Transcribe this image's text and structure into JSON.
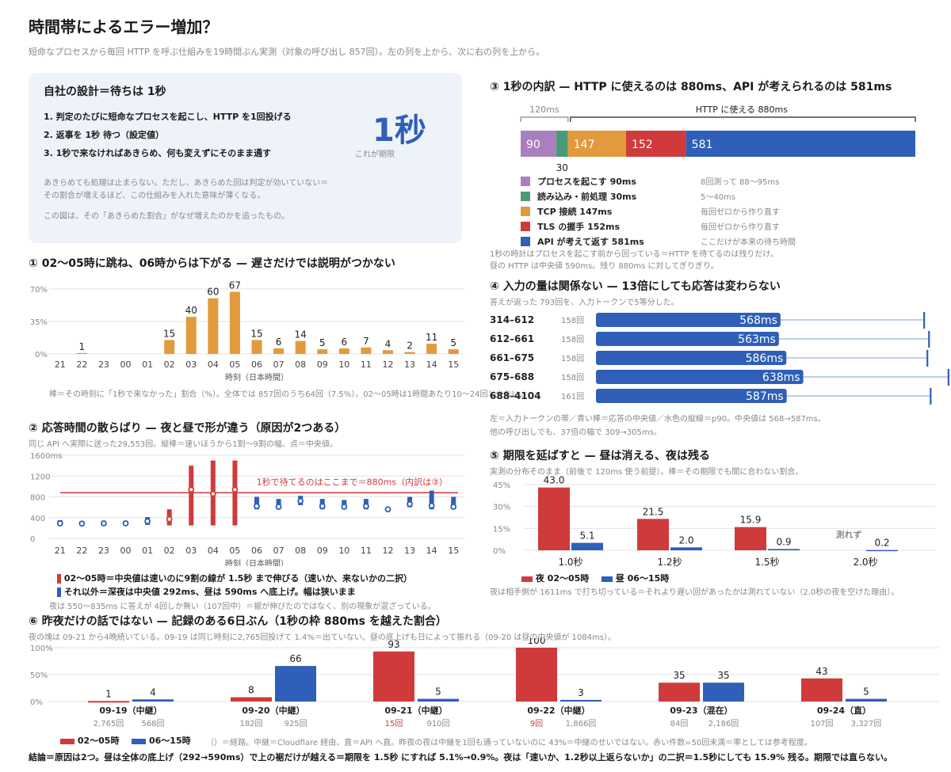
{
  "title": "時間帯によるエラー増加？",
  "subtitle": "短命なプロセスから毎回 HTTP を呼ぶ仕組みを19時間ぶん実測（対象の呼び出し 857回）。左の列を上から、次に右の列を上から。",
  "design": {
    "title": "自社の設計＝待ちは 1秒",
    "steps": [
      "1.  判定のたびに短命なプロセスを起こし、HTTP を1回投げる",
      "2.  返事を 1秒 待つ（設定値）",
      "3.  1秒で来なければあきらめ、何も変えずにそのまま通す"
    ],
    "big": "1秒",
    "big_caption": "これが期限",
    "note1": "あきらめても処理は止まらない。ただし、あきらめた回は判定が効いていない＝",
    "note2": "その割合が増えるほど、この仕組みを入れた意味が薄くなる。",
    "note3": "この図は、その「あきらめた割合」がなぜ増えたのかを追ったもの。"
  },
  "colors": {
    "orange": "#e39a3c",
    "red": "#cf3b3b",
    "blue": "#2f5fb8",
    "purple": "#a97fbf",
    "green": "#4a9a7a",
    "grid": "#e3e3e3",
    "gray": "#888888",
    "lightblue": "#a9c0e3"
  },
  "section1": {
    "title": "① 02〜05時に跳ね、06時からは下がる — 遅さだけでは説明がつかない",
    "caption": "棒＝その時刻に「1秒で来なかった」割合（%）。全体では 857回のうち64回（7.5%）。02〜05時は1時間あたり10〜24回と少ない。"
  },
  "section2": {
    "title": "② 応答時間の散らばり — 夜と昼で形が違う（原因が2つある）",
    "caption": "同じ API へ実際に送った29,553回。縦棒＝速いほうから1割〜9割の幅、点＝中央値。",
    "threshold_label": "1秒で待てるのはここまで＝880ms（内訳は③）",
    "legend1": "02〜05時＝中央値は速いのに9割の線が 1.5秒 まで伸びる（速いか、来ないかの二択）",
    "legend2": "それ以外＝深夜は中央値 292ms、昼は 590ms へ底上げ。幅は狭いまま",
    "note": "夜は 550〜835ms に答えが 4回しか無い（107回中）＝裾が伸びたのではなく、別の現象が混ざっている。"
  },
  "section3": {
    "title": "③ 1秒の内訳 — HTTP に使えるのは 880ms、API が考えられるのは 581ms",
    "bracket_left": "120ms",
    "bracket_right": "HTTP に使える 880ms",
    "segments": [
      {
        "label": "90",
        "value": 90,
        "color": "#a97fbf",
        "name": "プロセスを起こす  90ms",
        "desc": "8回測って 88〜95ms"
      },
      {
        "label": "30",
        "value": 30,
        "color": "#4a9a7a",
        "name": "読み込み・前処理  30ms",
        "desc": "5〜40ms"
      },
      {
        "label": "147",
        "value": 147,
        "color": "#e39a3c",
        "name": "TCP 接続  147ms",
        "desc": "毎回ゼロから作り直す"
      },
      {
        "label": "152",
        "value": 152,
        "color": "#cf3b3b",
        "name": "TLS の握手  152ms",
        "desc": "毎回ゼロから作り直す"
      },
      {
        "label": "581",
        "value": 581,
        "color": "#2f5fb8",
        "name": "API が考えて返す  581ms",
        "desc": "ここだけが本来の待ち時間"
      }
    ],
    "note1": "1秒の時計はプロセスを起こす前から回っている＝HTTP を待てるのは残りだけ。",
    "note2": "昼の HTTP は中央値 590ms。残り 880ms に対してぎりぎり。"
  },
  "section4": {
    "title": "④ 入力の量は関係ない — 13倍にしても応答は変わらない",
    "caption": "答えが返った 793回を、入力トークンで5等分した。",
    "rows": [
      {
        "band": "314–612",
        "count": "158回",
        "median": 568,
        "label": "568ms",
        "p90": 1010
      },
      {
        "band": "612–661",
        "count": "158回",
        "median": 563,
        "label": "563ms",
        "p90": 1025
      },
      {
        "band": "661–675",
        "count": "158回",
        "median": 586,
        "label": "586ms",
        "p90": 1020
      },
      {
        "band": "675–688",
        "count": "158回",
        "median": 638,
        "label": "638ms",
        "p90": 1085
      },
      {
        "band": "688–4104",
        "count": "161回",
        "median": 587,
        "label": "587ms",
        "p90": 1030
      }
    ],
    "note1": "左＝入力トークンの帯／青い棒＝応答の中央値／水色の縦線＝p90。中央値は 568→587ms。",
    "note2": "他の呼び出しでも、37倍の幅で 309→305ms。"
  },
  "section5": {
    "title": "⑤ 期限を延ばすと — 昼は消える、夜は残る",
    "caption": "実測の分布そのまま（前後で 120ms 使う前提）。棒＝その期限でも間に合わない割合。",
    "legend_night": "夜 02〜05時",
    "legend_day": "昼 06〜15時",
    "unmeasured": "測れず",
    "note": "夜は相手側が 1611ms で打ち切っている＝それより遅い回があったかは測れていない（2.0秒の夜を空けた理由）。"
  },
  "section6": {
    "title": "⑥ 昨夜だけの話ではない — 記録のある6日ぶん（1秒の枠 880ms を越えた割合）",
    "caption": "夜の塊は 09-21 から4晩続いている。09-19 は同じ時刻に2,765回投げて 1.4%＝出ていない。昼の底上げも日によって振れる（09-20 は昼の中央値が 1084ms）。",
    "legend_night": "02〜05時",
    "legend_day": "06〜15時",
    "legend_note": "（）＝経路。中継＝Cloudflare 経由、直＝API へ直。昨夜の夜は中継を1回も通っていないのに 43%＝中継のせいではない。赤い件数=50回未満＝率としては参考程度。"
  },
  "conclusion": "結論＝原因は2つ。昼は全体の底上げ（292→590ms）で上の裾だけが越える＝期限を 1.5秒 にすれば 5.1%→0.9%。夜は「速いか、1.2秒以上返らないか」の二択＝1.5秒にしても 15.9% 残る。期限では直らない。",
  "chart_data": [
    {
      "type": "bar",
      "title": "① 02〜05時に跳ね、06時からは下がる — 遅さだけでは説明がつかない",
      "categories": [
        "21",
        "22",
        "23",
        "00",
        "01",
        "02",
        "03",
        "04",
        "05",
        "06",
        "07",
        "08",
        "09",
        "10",
        "11",
        "12",
        "13",
        "14",
        "15"
      ],
      "values": [
        0,
        1,
        0,
        0,
        0,
        15,
        40,
        60,
        67,
        15,
        6,
        14,
        5,
        6,
        7,
        4,
        2,
        11,
        5
      ],
      "value_labels": [
        "",
        "1",
        "",
        "",
        "",
        "15",
        "40",
        "60",
        "67",
        "15",
        "6",
        "14",
        "5",
        "6",
        "7",
        "4",
        "2",
        "11",
        "5"
      ],
      "yticks": [
        "0%",
        "35%",
        "70%"
      ],
      "ylim": [
        0,
        70
      ],
      "xlabel": "時刻（日本時間）",
      "ylabel": ""
    },
    {
      "type": "scatter",
      "title": "② 応答時間の散らばり — 夜と昼で形が違う（原因が2つある）",
      "categories": [
        "21",
        "22",
        "23",
        "00",
        "01",
        "02",
        "03",
        "04",
        "05",
        "06",
        "07",
        "08",
        "09",
        "10",
        "11",
        "12",
        "13",
        "14",
        "15"
      ],
      "median": [
        290,
        285,
        290,
        290,
        330,
        370,
        940,
        860,
        940,
        620,
        610,
        720,
        620,
        610,
        620,
        560,
        660,
        630,
        610
      ],
      "p10": [
        250,
        250,
        250,
        250,
        260,
        250,
        250,
        250,
        250,
        560,
        560,
        640,
        560,
        560,
        560,
        540,
        600,
        560,
        560
      ],
      "p90": [
        350,
        330,
        340,
        340,
        410,
        560,
        1400,
        1500,
        1500,
        800,
        760,
        820,
        760,
        740,
        760,
        600,
        800,
        920,
        800
      ],
      "night_hours": [
        "02",
        "03",
        "04",
        "05"
      ],
      "threshold": 880,
      "yticks": [
        "0",
        "400",
        "800",
        "1200",
        "1600ms"
      ],
      "ylim": [
        0,
        1600
      ],
      "xlabel": "時刻（日本時間）"
    },
    {
      "type": "bar",
      "title": "⑤ 期限を延ばすと — 昼は消える、夜は残る",
      "categories": [
        "1.0秒",
        "1.2秒",
        "1.5秒",
        "2.0秒"
      ],
      "series": [
        {
          "name": "夜 02〜05時",
          "values": [
            43.0,
            21.5,
            15.9,
            null
          ],
          "labels": [
            "43.0",
            "21.5",
            "15.9",
            ""
          ]
        },
        {
          "name": "昼 06〜15時",
          "values": [
            5.1,
            2.0,
            0.9,
            0.2
          ],
          "labels": [
            "5.1",
            "2.0",
            "0.9",
            "0.2"
          ]
        }
      ],
      "yticks": [
        "0%",
        "15%",
        "30%",
        "45%"
      ],
      "ylim": [
        0,
        45
      ]
    },
    {
      "type": "bar",
      "title": "⑥ 昨夜だけの話ではない — 記録のある6日ぶん（1秒の枠 880ms を越えた割合）",
      "categories": [
        "09-19（中継）",
        "09-20（中継）",
        "09-21（中継）",
        "09-22（中継）",
        "09-23（混在）",
        "09-24（直）"
      ],
      "series": [
        {
          "name": "02〜05時",
          "values": [
            1,
            8,
            93,
            100,
            35,
            43
          ],
          "counts": [
            "2,765回",
            "182回",
            "15回",
            "9回",
            "84回",
            "107回"
          ]
        },
        {
          "name": "06〜15時",
          "values": [
            4,
            66,
            5,
            3,
            35,
            5
          ],
          "counts": [
            "568回",
            "925回",
            "910回",
            "1,866回",
            "2,186回",
            "3,327回"
          ]
        }
      ],
      "small_count_days": [
        "09-21（中継）",
        "09-22（中継）"
      ],
      "yticks": [
        "0%",
        "50%",
        "100%"
      ],
      "ylim": [
        0,
        100
      ]
    }
  ]
}
